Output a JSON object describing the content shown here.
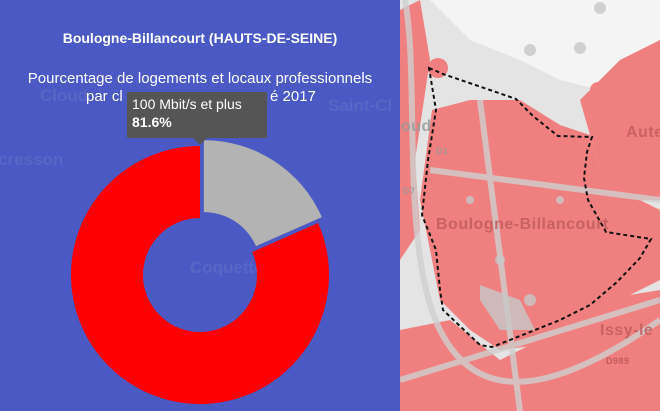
{
  "panel": {
    "title": "Boulogne-Billancourt (HAUTS-DE-SEINE)",
    "subtitle_line1": "Pourcentage de logements et locaux professionnels",
    "subtitle_line2_left": "par cl",
    "subtitle_line2_right": "é 2017",
    "background_labels": [
      "Cloud",
      "cresson",
      "Coquette",
      "Saint-Cl"
    ]
  },
  "tooltip": {
    "label": "100 Mbit/s et plus",
    "value": "81.6%"
  },
  "chart_data": {
    "type": "pie",
    "donut": true,
    "slices": [
      {
        "name": "100 Mbit/s et plus",
        "value": 81.6,
        "color": "#ff0000"
      },
      {
        "value": 18.4,
        "color": "#b3b3b3"
      }
    ],
    "highlighted": 1
  },
  "map": {
    "labels": [
      "Boulogne-Billancourt",
      "Aute",
      "Issy-le",
      "oud",
      "D7",
      "D1",
      "D989"
    ],
    "coverage_color": "#f08080",
    "boundary_style": "dashed"
  }
}
